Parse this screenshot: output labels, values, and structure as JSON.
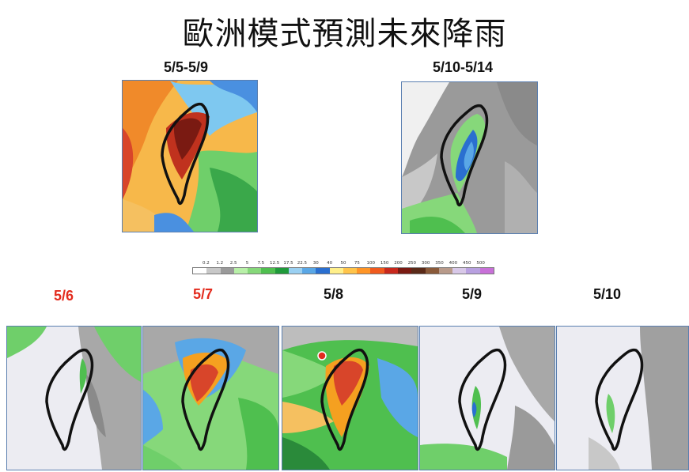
{
  "title": "歐洲模式預測未來降雨",
  "periods": {
    "p1": "5/5-5/9",
    "p2": "5/10-5/14"
  },
  "days": [
    "5/6",
    "5/7",
    "5/8",
    "5/9",
    "5/10"
  ],
  "legend": {
    "ticks": [
      "0.2",
      "1.2",
      "2.5",
      "5",
      "7.5",
      "12.5",
      "17.5",
      "22.5",
      "30",
      "40",
      "50",
      "75",
      "100",
      "150",
      "200",
      "250",
      "300",
      "350",
      "400",
      "450",
      "500"
    ],
    "colors": [
      "#ffffff",
      "#c8c8c8",
      "#9a9a9a",
      "#b8f0a8",
      "#86d87a",
      "#4fbf4f",
      "#1f9a3a",
      "#9ad0f2",
      "#5aa7e6",
      "#2a6fd0",
      "#ffef8a",
      "#ffc44a",
      "#ff9526",
      "#f05a1e",
      "#c8281c",
      "#7a1a12",
      "#5a2a18",
      "#8a5a3a",
      "#b89a8a",
      "#d8c8e8",
      "#b8a0e0",
      "#c870d8"
    ]
  },
  "colors": {
    "heavy": "#c8281c",
    "wet": "#4fbf4f",
    "dry": "#8a8a8a",
    "highlight_red": "#e32b1d"
  }
}
